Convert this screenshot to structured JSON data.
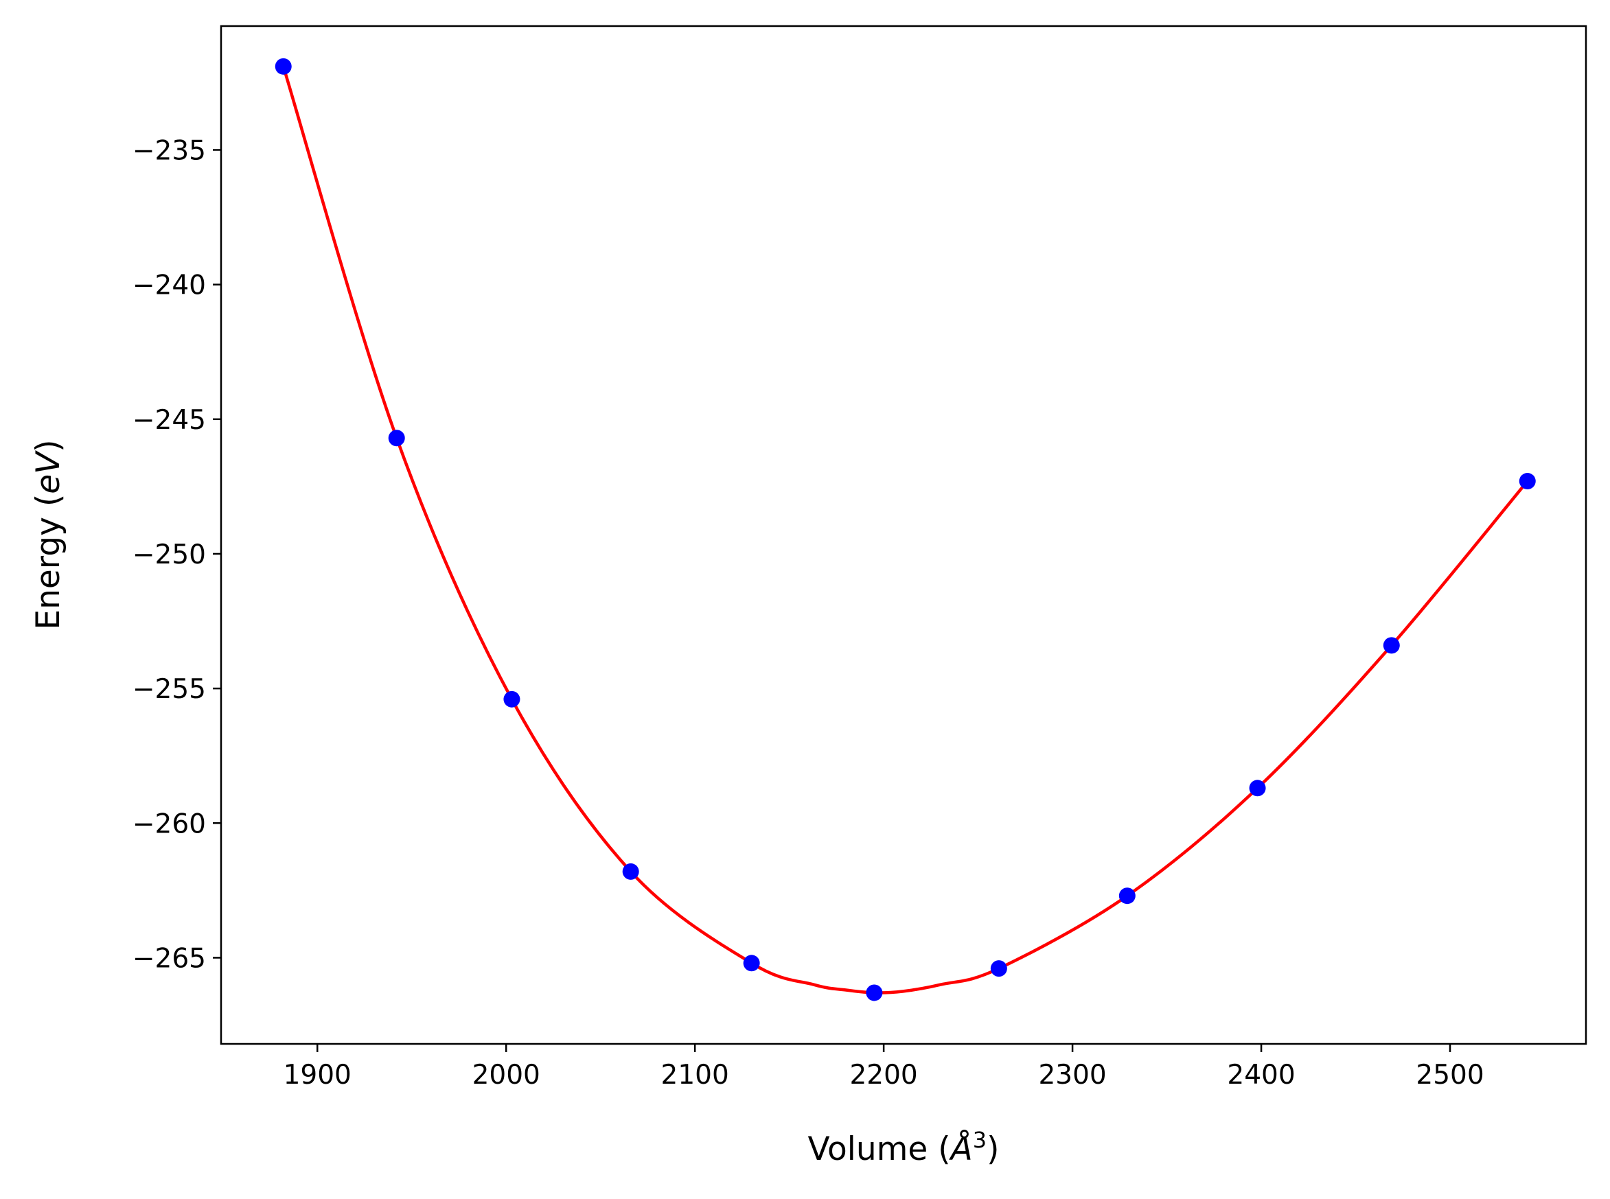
{
  "chart_data": {
    "type": "scatter",
    "title": "",
    "xlabel": {
      "pre": "Volume (",
      "symbol": "Å",
      "sup": "3",
      "post": ")"
    },
    "ylabel": {
      "pre": "Energy (",
      "italic": "eV",
      "post": ")"
    },
    "xlim": [
      1849,
      2572
    ],
    "ylim": [
      -268.2,
      -230.4
    ],
    "xticks": [
      1900,
      2000,
      2100,
      2200,
      2300,
      2400,
      2500
    ],
    "yticks": [
      -235,
      -240,
      -245,
      -250,
      -255,
      -260,
      -265
    ],
    "xtick_labels": [
      "1900",
      "2000",
      "2100",
      "2200",
      "2300",
      "2400",
      "2500"
    ],
    "ytick_labels": [
      "−235",
      "−240",
      "−245",
      "−250",
      "−255",
      "−260",
      "−265"
    ],
    "grid": false,
    "series": [
      {
        "style": "markers",
        "color": "#0000ff",
        "x": [
          1882,
          1942,
          2003,
          2066,
          2130,
          2195,
          2261,
          2329,
          2398,
          2469,
          2541
        ],
        "y": [
          -231.9,
          -245.7,
          -255.4,
          -261.8,
          -265.2,
          -266.3,
          -265.4,
          -262.7,
          -258.7,
          -253.4,
          -247.3
        ]
      },
      {
        "style": "line",
        "color": "#ff0000",
        "x": [
          1882,
          1942,
          2003,
          2066,
          2130,
          2163,
          2180,
          2195,
          2210,
          2230,
          2261,
          2329,
          2398,
          2469,
          2541
        ],
        "y": [
          -231.9,
          -245.7,
          -255.4,
          -261.8,
          -265.2,
          -266.0,
          -266.2,
          -266.3,
          -266.25,
          -266.0,
          -265.4,
          -262.7,
          -258.7,
          -253.4,
          -247.3
        ]
      }
    ]
  }
}
